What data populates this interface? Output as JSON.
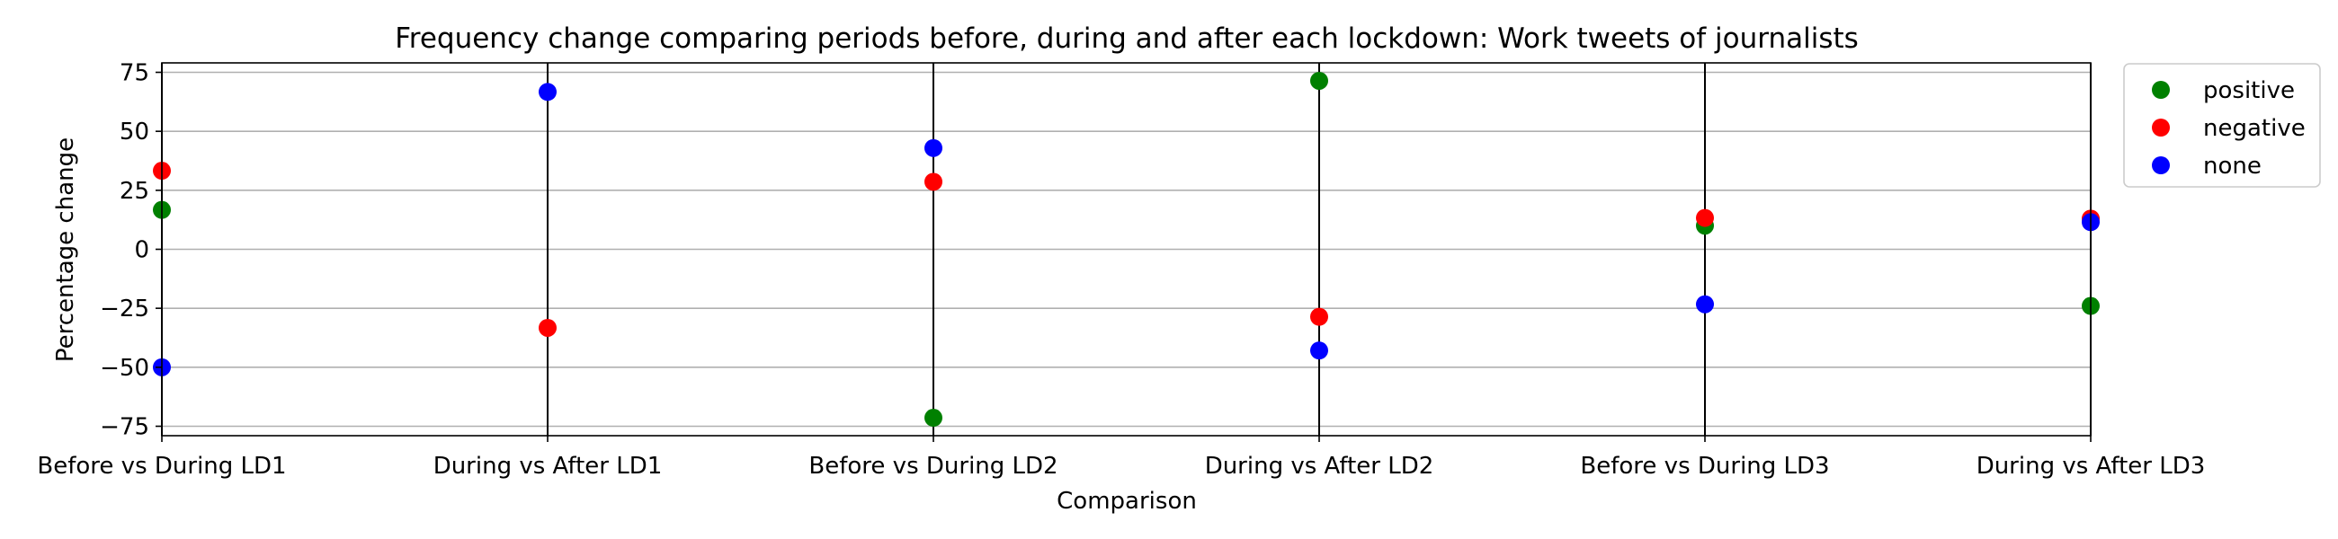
{
  "chart_data": {
    "type": "scatter",
    "title": "Frequency change comparing periods before, during and after each lockdown: Work tweets of journalists",
    "xlabel": "Comparison",
    "ylabel": "Percentage change",
    "categories": [
      "Before vs During LD1",
      "During vs After LD1",
      "Before vs During LD2",
      "During vs After LD2",
      "Before vs During LD3",
      "During vs After LD3"
    ],
    "ylim": [
      -79,
      79
    ],
    "yticks": [
      -75,
      -50,
      -25,
      0,
      25,
      50,
      75
    ],
    "grid": "horizontal",
    "legend_position": "outside-top-right",
    "series": [
      {
        "name": "positive",
        "color": "#008000",
        "values": [
          16.7,
          null,
          -71.4,
          71.4,
          10.0,
          -24.0
        ]
      },
      {
        "name": "negative",
        "color": "#ff0000",
        "values": [
          33.3,
          -33.3,
          28.6,
          -28.6,
          13.3,
          13.0
        ]
      },
      {
        "name": "none",
        "color": "#0000ff",
        "values": [
          -50.0,
          66.7,
          42.9,
          -42.9,
          -23.3,
          11.5
        ]
      }
    ]
  }
}
